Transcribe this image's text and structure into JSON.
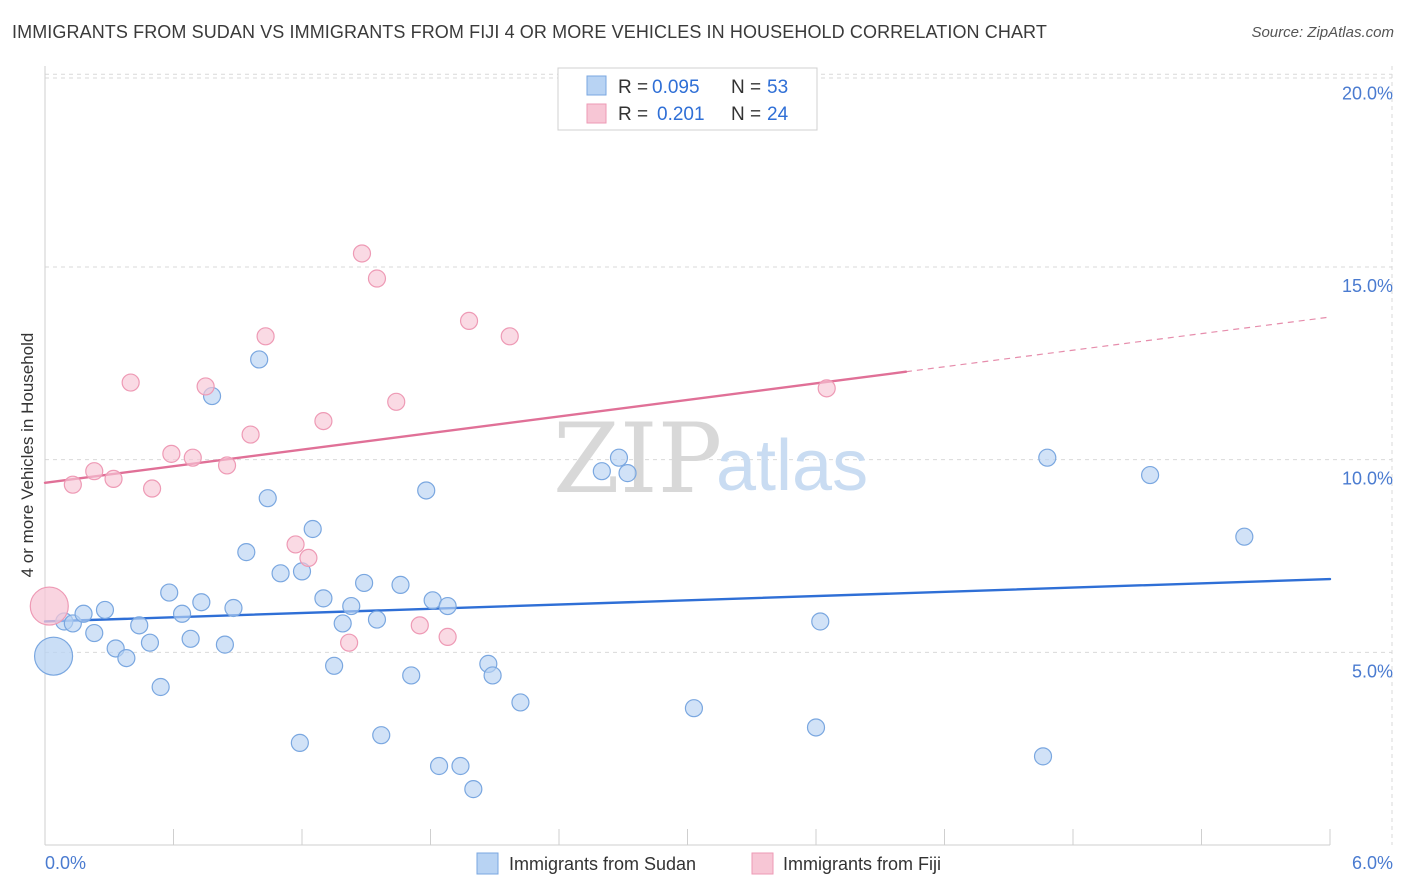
{
  "header": {
    "title": "IMMIGRANTS FROM SUDAN VS IMMIGRANTS FROM FIJI 4 OR MORE VEHICLES IN HOUSEHOLD CORRELATION CHART",
    "source": "Source: ZipAtlas.com"
  },
  "watermark": {
    "zip": "ZIP",
    "atlas": "atlas"
  },
  "colors": {
    "sudan_fill": "#b8d3f3",
    "sudan_stroke": "#7aa7e0",
    "sudan_line": "#2f6fd6",
    "fiji_fill": "#f7c6d5",
    "fiji_stroke": "#ee9ab5",
    "fiji_line": "#e07097",
    "grid": "#d9d9d9",
    "tick_label": "#4a7bd0"
  },
  "legend": {
    "rows": [
      {
        "r_label": "R =",
        "r_value": "0.095",
        "n_label": "N =",
        "n_value": "53"
      },
      {
        "r_label": "R =",
        "r_value": "0.201",
        "n_label": "N =",
        "n_value": "24"
      }
    ]
  },
  "chart_data": {
    "type": "scatter",
    "title": "IMMIGRANTS FROM SUDAN VS IMMIGRANTS FROM FIJI 4 OR MORE VEHICLES IN HOUSEHOLD CORRELATION CHART",
    "xlabel": "",
    "ylabel": "4 or more Vehicles in Household",
    "xlim": [
      0,
      6
    ],
    "ylim": [
      0,
      20.5
    ],
    "x_tick_labels": [
      "0.0%",
      "6.0%"
    ],
    "y_ticks": [
      5,
      10,
      15,
      20
    ],
    "y_tick_labels": [
      "5.0%",
      "10.0%",
      "15.0%",
      "20.0%"
    ],
    "grid": true,
    "legend_position": "top-center",
    "series": [
      {
        "name": "Immigrants from Sudan",
        "R": 0.095,
        "N": 53,
        "trend": {
          "x": [
            0,
            6
          ],
          "y": [
            5.8,
            6.9
          ],
          "dashed_from": 6
        },
        "points": [
          [
            0.04,
            4.9,
            "large"
          ],
          [
            0.09,
            5.8
          ],
          [
            0.13,
            5.75
          ],
          [
            0.18,
            6.0
          ],
          [
            0.23,
            5.5
          ],
          [
            0.28,
            6.1
          ],
          [
            0.33,
            5.1
          ],
          [
            0.38,
            4.85
          ],
          [
            0.44,
            5.7
          ],
          [
            0.49,
            5.25
          ],
          [
            0.54,
            4.1
          ],
          [
            0.58,
            6.55
          ],
          [
            0.64,
            6.0
          ],
          [
            0.68,
            5.35
          ],
          [
            0.73,
            6.3
          ],
          [
            0.78,
            11.65
          ],
          [
            0.84,
            5.2
          ],
          [
            0.88,
            6.15
          ],
          [
            0.94,
            7.6
          ],
          [
            1.0,
            12.6
          ],
          [
            1.04,
            9.0
          ],
          [
            1.1,
            7.05
          ],
          [
            1.19,
            2.65
          ],
          [
            1.2,
            7.1
          ],
          [
            1.25,
            8.2
          ],
          [
            1.3,
            6.4
          ],
          [
            1.35,
            4.65
          ],
          [
            1.39,
            5.75
          ],
          [
            1.43,
            6.2
          ],
          [
            1.49,
            6.8
          ],
          [
            1.55,
            5.85
          ],
          [
            1.57,
            2.85
          ],
          [
            1.66,
            6.75
          ],
          [
            1.71,
            4.4
          ],
          [
            1.78,
            9.2
          ],
          [
            1.81,
            6.35
          ],
          [
            1.84,
            2.05
          ],
          [
            1.88,
            6.2
          ],
          [
            1.94,
            2.05
          ],
          [
            2.0,
            1.45
          ],
          [
            2.07,
            4.7
          ],
          [
            2.09,
            4.4
          ],
          [
            2.22,
            3.7
          ],
          [
            2.6,
            9.7
          ],
          [
            2.68,
            10.05
          ],
          [
            2.72,
            9.65
          ],
          [
            3.03,
            3.55
          ],
          [
            3.6,
            3.05
          ],
          [
            3.62,
            5.8
          ],
          [
            4.66,
            2.3
          ],
          [
            4.68,
            10.05
          ],
          [
            5.16,
            9.6
          ],
          [
            5.6,
            8.0
          ]
        ]
      },
      {
        "name": "Immigrants from Fiji",
        "R": 0.201,
        "N": 24,
        "trend": {
          "x": [
            0,
            6
          ],
          "y": [
            9.4,
            13.7
          ],
          "dashed_from": 4.02
        },
        "points": [
          [
            0.02,
            6.2,
            "large"
          ],
          [
            0.13,
            9.35
          ],
          [
            0.23,
            9.7
          ],
          [
            0.32,
            9.5
          ],
          [
            0.4,
            12.0
          ],
          [
            0.5,
            9.25
          ],
          [
            0.59,
            10.15
          ],
          [
            0.69,
            10.05
          ],
          [
            0.75,
            11.9
          ],
          [
            0.85,
            9.85
          ],
          [
            0.96,
            10.65
          ],
          [
            1.03,
            13.2
          ],
          [
            1.17,
            7.8
          ],
          [
            1.23,
            7.45
          ],
          [
            1.3,
            11.0
          ],
          [
            1.42,
            5.25
          ],
          [
            1.48,
            15.35
          ],
          [
            1.55,
            14.7
          ],
          [
            1.64,
            11.5
          ],
          [
            1.75,
            5.7
          ],
          [
            1.88,
            5.4
          ],
          [
            1.98,
            13.6
          ],
          [
            2.17,
            13.2
          ],
          [
            3.65,
            11.85
          ]
        ]
      }
    ]
  },
  "bottom_legend": [
    {
      "label": "Immigrants from Sudan"
    },
    {
      "label": "Immigrants from Fiji"
    }
  ]
}
